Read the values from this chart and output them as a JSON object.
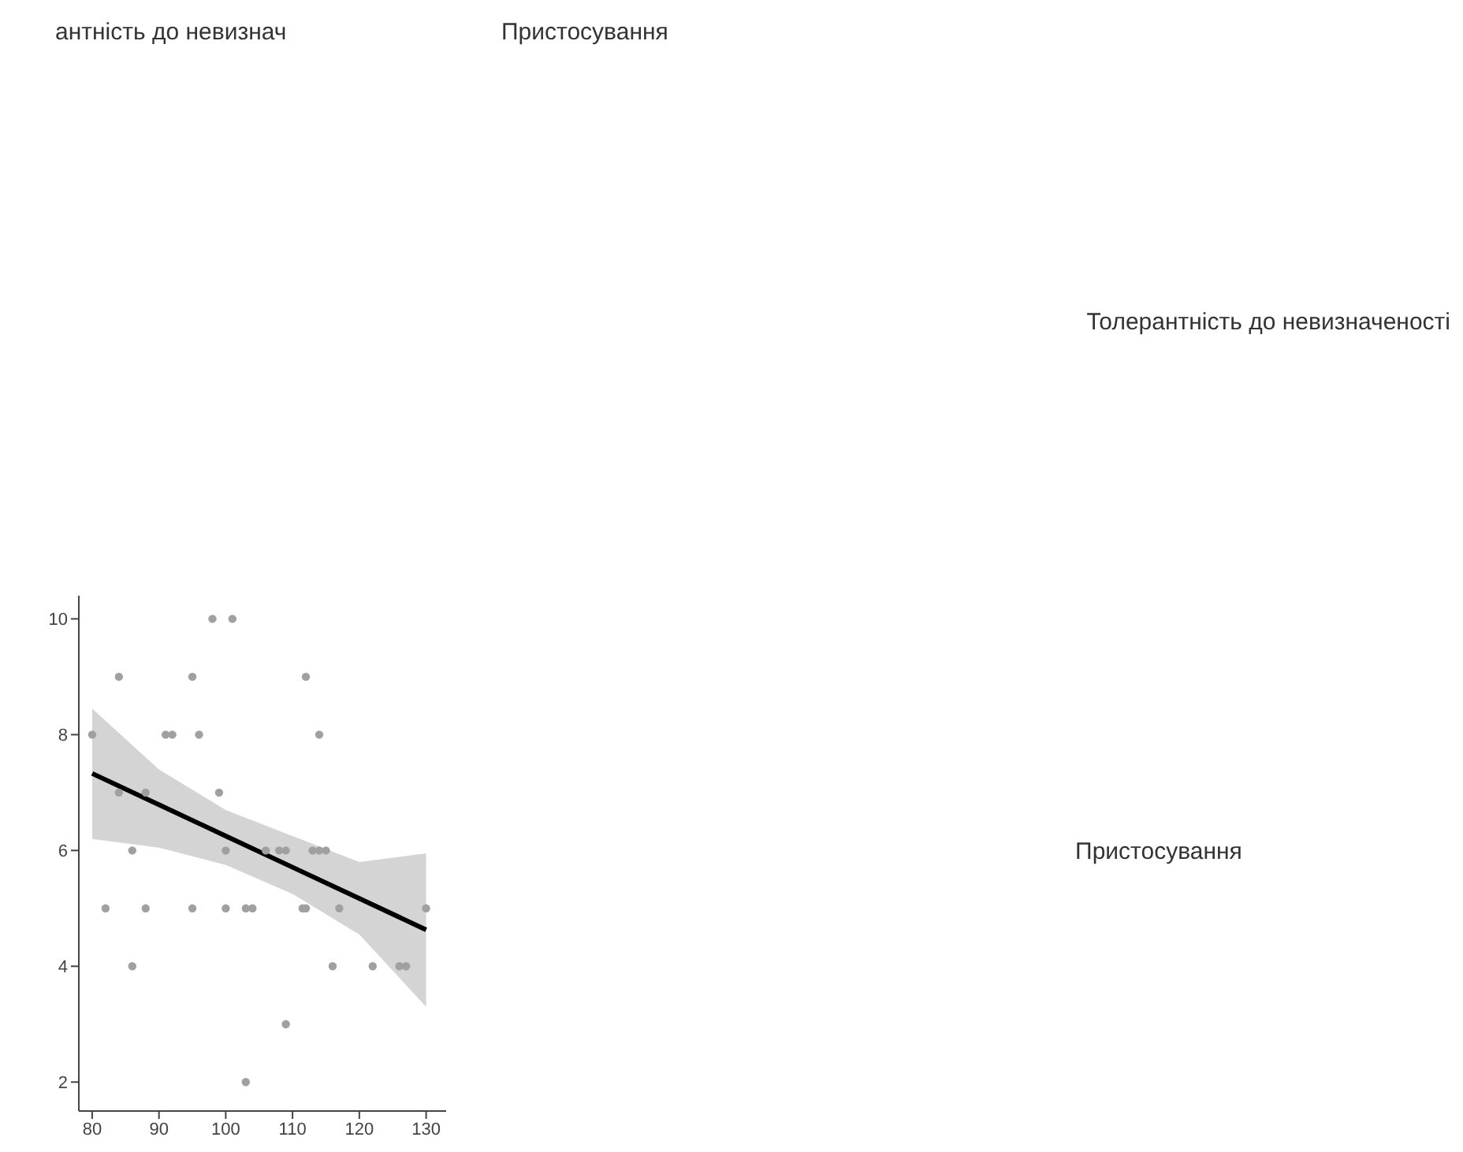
{
  "chart_data": {
    "type": "scatter",
    "annotations": [
      "антність до невизнач",
      "Пристосування",
      "Толерантність до невизначеності",
      "Пристосування"
    ],
    "series": [
      {
        "color": "#a0a0a0",
        "x": [
          98,
          101,
          84,
          95,
          112,
          80,
          91,
          92,
          96,
          114,
          84,
          88,
          99,
          86,
          100,
          106,
          108,
          109,
          113,
          114,
          115,
          82,
          88,
          95,
          100,
          103,
          104,
          111.5,
          112,
          117,
          130,
          86,
          116,
          122,
          126,
          127,
          109,
          103
        ],
        "values": [
          10,
          10,
          9,
          9,
          9,
          8,
          8,
          8,
          8,
          8,
          7,
          7,
          7,
          6,
          6,
          6,
          6,
          6,
          6,
          6,
          6,
          5,
          5,
          5,
          5,
          5,
          5,
          5,
          5,
          5,
          5,
          4,
          4,
          4,
          4,
          4,
          3,
          2
        ]
      },
      {
        "type": "line",
        "color": "#000000",
        "x": [
          80,
          90,
          100,
          110,
          120,
          130
        ],
        "values": [
          7.33,
          6.79,
          6.25,
          5.71,
          5.17,
          4.63
        ],
        "lower": [
          6.2,
          6.05,
          5.75,
          5.25,
          4.55,
          3.3
        ],
        "upper": [
          8.45,
          7.4,
          6.7,
          6.25,
          5.8,
          5.95
        ]
      }
    ],
    "xlim": [
      78,
      133
    ],
    "xticks": [
      80,
      90,
      100,
      110,
      120,
      130
    ],
    "ylim": [
      1.5,
      10.4
    ],
    "yticks": [
      2,
      4,
      6,
      8,
      10
    ],
    "grid": false,
    "legend": false
  }
}
